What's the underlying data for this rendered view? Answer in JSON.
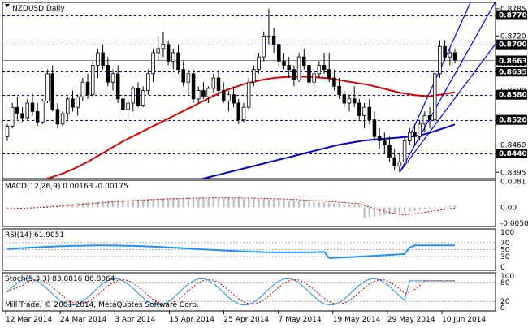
{
  "symbol_title": "NZDUSD,Daily",
  "watermark": "Mill Trade, © 2001-2014, MetaQuotes Software Corp.",
  "colors": {
    "background": "#ffffff",
    "grid": "#c8c8c8",
    "bull_candle": "#ffffff",
    "bear_candle": "#000000",
    "candle_outline": "#000000",
    "level_line": "#0000aa",
    "channel_line": "#0000ff",
    "ma_fast": "#dd0000",
    "ma_slow": "#0000cc",
    "label_box": "#000000",
    "label_text": "#ffffff",
    "current_box": "#000000",
    "macd_hist": "#c0c0c0",
    "macd_signal": "#c00000",
    "rsi_line": "#1e90ff",
    "stoch_main": "#1e90ff",
    "stoch_signal": "#c00000"
  },
  "chart_data": [
    {
      "type": "candlestick",
      "panel": "price",
      "y_axis_ticks": [
        "0.8785",
        "0.8720",
        "0.8655",
        "0.8590",
        "0.8525",
        "0.8460",
        "0.8395"
      ],
      "ylim": [
        0.838,
        0.88
      ],
      "current_price": "0.8663",
      "horizontal_levels": [
        {
          "label": "0.8770",
          "value": 0.877
        },
        {
          "label": "0.8700",
          "value": 0.87
        },
        {
          "label": "0.8635",
          "value": 0.8635
        },
        {
          "label": "0.8580",
          "value": 0.858
        },
        {
          "label": "0.8520",
          "value": 0.852
        },
        {
          "label": "0.8440",
          "value": 0.844
        }
      ],
      "x_tick_labels": [
        "12 Mar 2014",
        "24 Mar 2014",
        "3 Apr 2014",
        "15 Apr 2014",
        "25 Apr 2014",
        "7 May 2014",
        "19 May 2014",
        "29 May 2014",
        "10 Jun 2014"
      ],
      "candles": [
        [
          0.848,
          0.851,
          0.847,
          0.8505
        ],
        [
          0.8505,
          0.856,
          0.85,
          0.855
        ],
        [
          0.855,
          0.8575,
          0.852,
          0.8535
        ],
        [
          0.8535,
          0.855,
          0.8515,
          0.8525
        ],
        [
          0.8525,
          0.857,
          0.852,
          0.856
        ],
        [
          0.856,
          0.8585,
          0.853,
          0.854
        ],
        [
          0.854,
          0.856,
          0.8505,
          0.8515
        ],
        [
          0.8515,
          0.857,
          0.851,
          0.8565
        ],
        [
          0.8565,
          0.864,
          0.856,
          0.863
        ],
        [
          0.863,
          0.865,
          0.854,
          0.8545
        ],
        [
          0.8545,
          0.856,
          0.85,
          0.851
        ],
        [
          0.851,
          0.854,
          0.8505,
          0.8535
        ],
        [
          0.8535,
          0.8575,
          0.852,
          0.857
        ],
        [
          0.857,
          0.859,
          0.854,
          0.855
        ],
        [
          0.855,
          0.858,
          0.853,
          0.8575
        ],
        [
          0.8575,
          0.862,
          0.8565,
          0.861
        ],
        [
          0.861,
          0.863,
          0.857,
          0.858
        ],
        [
          0.858,
          0.866,
          0.8575,
          0.865
        ],
        [
          0.865,
          0.869,
          0.862,
          0.868
        ],
        [
          0.868,
          0.87,
          0.864,
          0.865
        ],
        [
          0.865,
          0.867,
          0.86,
          0.861
        ],
        [
          0.861,
          0.864,
          0.859,
          0.863
        ],
        [
          0.863,
          0.865,
          0.856,
          0.857
        ],
        [
          0.857,
          0.858,
          0.853,
          0.8545
        ],
        [
          0.8545,
          0.857,
          0.851,
          0.856
        ],
        [
          0.856,
          0.86,
          0.854,
          0.8595
        ],
        [
          0.8595,
          0.861,
          0.855,
          0.8555
        ],
        [
          0.8555,
          0.86,
          0.855,
          0.859
        ],
        [
          0.859,
          0.864,
          0.858,
          0.863
        ],
        [
          0.863,
          0.869,
          0.861,
          0.868
        ],
        [
          0.868,
          0.872,
          0.866,
          0.869
        ],
        [
          0.869,
          0.873,
          0.867,
          0.87
        ],
        [
          0.87,
          0.871,
          0.865,
          0.866
        ],
        [
          0.866,
          0.869,
          0.864,
          0.868
        ],
        [
          0.868,
          0.87,
          0.863,
          0.864
        ],
        [
          0.864,
          0.866,
          0.86,
          0.861
        ],
        [
          0.861,
          0.864,
          0.858,
          0.863
        ],
        [
          0.863,
          0.864,
          0.856,
          0.857
        ],
        [
          0.857,
          0.86,
          0.856,
          0.859
        ],
        [
          0.859,
          0.861,
          0.857,
          0.8575
        ],
        [
          0.8575,
          0.86,
          0.856,
          0.8595
        ],
        [
          0.8595,
          0.863,
          0.8585,
          0.862
        ],
        [
          0.862,
          0.864,
          0.858,
          0.859
        ],
        [
          0.859,
          0.861,
          0.856,
          0.8565
        ],
        [
          0.8565,
          0.859,
          0.854,
          0.858
        ],
        [
          0.858,
          0.86,
          0.855,
          0.856
        ],
        [
          0.856,
          0.857,
          0.851,
          0.852
        ],
        [
          0.852,
          0.856,
          0.8515,
          0.855
        ],
        [
          0.855,
          0.862,
          0.8545,
          0.861
        ],
        [
          0.861,
          0.865,
          0.86,
          0.864
        ],
        [
          0.864,
          0.868,
          0.863,
          0.867
        ],
        [
          0.867,
          0.873,
          0.866,
          0.872
        ],
        [
          0.872,
          0.8785,
          0.87,
          0.872
        ],
        [
          0.872,
          0.874,
          0.868,
          0.87
        ],
        [
          0.87,
          0.871,
          0.865,
          0.866
        ],
        [
          0.866,
          0.868,
          0.864,
          0.865
        ],
        [
          0.865,
          0.867,
          0.862,
          0.864
        ],
        [
          0.864,
          0.865,
          0.86,
          0.8615
        ],
        [
          0.8615,
          0.868,
          0.861,
          0.867
        ],
        [
          0.867,
          0.869,
          0.864,
          0.865
        ],
        [
          0.865,
          0.866,
          0.86,
          0.861
        ],
        [
          0.861,
          0.864,
          0.86,
          0.863
        ],
        [
          0.863,
          0.866,
          0.862,
          0.865
        ],
        [
          0.865,
          0.868,
          0.863,
          0.864
        ],
        [
          0.864,
          0.868,
          0.861,
          0.862
        ],
        [
          0.862,
          0.864,
          0.859,
          0.86
        ],
        [
          0.86,
          0.862,
          0.857,
          0.858
        ],
        [
          0.858,
          0.859,
          0.855,
          0.856
        ],
        [
          0.856,
          0.858,
          0.854,
          0.857
        ],
        [
          0.857,
          0.86,
          0.855,
          0.856
        ],
        [
          0.856,
          0.857,
          0.852,
          0.853
        ],
        [
          0.853,
          0.856,
          0.85,
          0.855
        ],
        [
          0.855,
          0.857,
          0.851,
          0.852
        ],
        [
          0.852,
          0.854,
          0.847,
          0.848
        ],
        [
          0.848,
          0.85,
          0.845,
          0.847
        ],
        [
          0.847,
          0.849,
          0.844,
          0.846
        ],
        [
          0.846,
          0.848,
          0.842,
          0.843
        ],
        [
          0.843,
          0.845,
          0.84,
          0.841
        ],
        [
          0.841,
          0.844,
          0.8395,
          0.842
        ],
        [
          0.842,
          0.848,
          0.841,
          0.847
        ],
        [
          0.847,
          0.85,
          0.846,
          0.849
        ],
        [
          0.849,
          0.851,
          0.846,
          0.848
        ],
        [
          0.848,
          0.852,
          0.847,
          0.851
        ],
        [
          0.851,
          0.854,
          0.849,
          0.853
        ],
        [
          0.853,
          0.855,
          0.85,
          0.852
        ],
        [
          0.852,
          0.864,
          0.8515,
          0.863
        ],
        [
          0.863,
          0.871,
          0.862,
          0.8695
        ],
        [
          0.8695,
          0.871,
          0.866,
          0.867
        ],
        [
          0.867,
          0.869,
          0.865,
          0.868
        ],
        [
          0.868,
          0.869,
          0.8655,
          0.8663
        ]
      ],
      "ma_fast_values": [
        0.836,
        0.8362,
        0.8364,
        0.8366,
        0.8368,
        0.837,
        0.8373,
        0.8376,
        0.838,
        0.8384,
        0.8388,
        0.8392,
        0.8397,
        0.8402,
        0.8408,
        0.8414,
        0.842,
        0.8427,
        0.8434,
        0.8441,
        0.8448,
        0.8455,
        0.8462,
        0.8469,
        0.8475,
        0.8481,
        0.8487,
        0.8493,
        0.8499,
        0.8505,
        0.8511,
        0.8517,
        0.8523,
        0.8529,
        0.8535,
        0.8541,
        0.8547,
        0.8553,
        0.8559,
        0.8565,
        0.8571,
        0.8577,
        0.8583,
        0.8588,
        0.8593,
        0.8597,
        0.8601,
        0.8605,
        0.8608,
        0.8611,
        0.8614,
        0.8616,
        0.8618,
        0.862,
        0.8621,
        0.8622,
        0.8623,
        0.8623,
        0.8623,
        0.8623,
        0.8623,
        0.8622,
        0.8621,
        0.862,
        0.8619,
        0.8617,
        0.8615,
        0.8613,
        0.8611,
        0.8609,
        0.8607,
        0.8605,
        0.8603,
        0.86,
        0.8597,
        0.8594,
        0.8591,
        0.8588,
        0.8585,
        0.8583,
        0.8581,
        0.8579,
        0.8578,
        0.8577,
        0.8576,
        0.8578,
        0.858,
        0.8582,
        0.8584,
        0.8586
      ],
      "ma_slow_values": [
        0.83,
        0.8302,
        0.8304,
        0.8306,
        0.8308,
        0.831,
        0.8312,
        0.8314,
        0.8316,
        0.8318,
        0.832,
        0.8322,
        0.8324,
        0.8326,
        0.8328,
        0.833,
        0.8332,
        0.8334,
        0.8336,
        0.8338,
        0.834,
        0.8342,
        0.8344,
        0.8346,
        0.8348,
        0.835,
        0.8352,
        0.8354,
        0.8356,
        0.8358,
        0.836,
        0.8362,
        0.8364,
        0.8366,
        0.8368,
        0.837,
        0.8372,
        0.8374,
        0.8377,
        0.838,
        0.8383,
        0.8386,
        0.8389,
        0.8392,
        0.8395,
        0.8398,
        0.8401,
        0.8404,
        0.8407,
        0.841,
        0.8413,
        0.8416,
        0.8419,
        0.8422,
        0.8425,
        0.8428,
        0.8431,
        0.8434,
        0.8437,
        0.844,
        0.8443,
        0.8446,
        0.8449,
        0.8452,
        0.8455,
        0.8458,
        0.8461,
        0.8463,
        0.8465,
        0.8467,
        0.8469,
        0.8471,
        0.8472,
        0.8473,
        0.8474,
        0.8475,
        0.8476,
        0.8477,
        0.8478,
        0.8479,
        0.848,
        0.8481,
        0.8483,
        0.8486,
        0.8489,
        0.8493,
        0.8497,
        0.8501,
        0.8505,
        0.8509
      ],
      "channel_lines": [
        {
          "from": {
            "bar": 78,
            "value": 0.8395
          },
          "to": {
            "bar": 97,
            "value": 0.88
          }
        },
        {
          "from": {
            "bar": 78,
            "value": 0.8395
          },
          "to": {
            "bar": 97,
            "value": 0.87
          }
        },
        {
          "from": {
            "bar": 80,
            "value": 0.848
          },
          "to": {
            "bar": 97,
            "value": 0.893
          }
        }
      ]
    },
    {
      "type": "histogram",
      "panel": "macd",
      "label": "MACD(12,26,9) 0.00163 -0.00175",
      "y_axis_ticks": [
        "0.0081",
        "0.00",
        "-0.00504"
      ],
      "ylim": [
        -0.006,
        0.0085
      ]
    },
    {
      "type": "line",
      "panel": "rsi",
      "label": "RSI(14) 61.9051",
      "y_axis_ticks": [
        "100",
        "70",
        "50",
        "30",
        "0"
      ],
      "ylim": [
        0,
        100
      ]
    },
    {
      "type": "line",
      "panel": "stochastic",
      "label": "Stoch(5,3,3) 83.8816 86.8064",
      "y_axis_ticks": [
        "100",
        "80",
        "20",
        "0"
      ],
      "ylim": [
        0,
        100
      ]
    }
  ]
}
